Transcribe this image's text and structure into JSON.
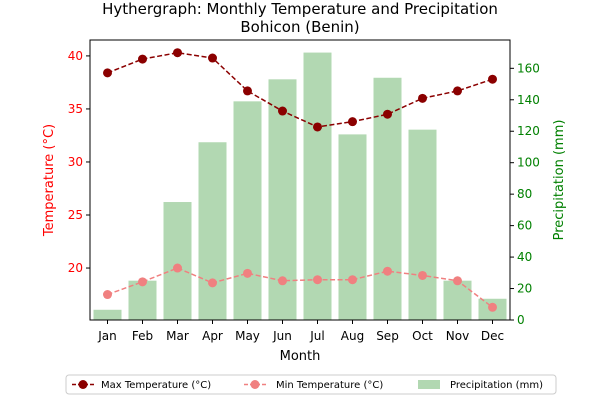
{
  "chart_data": {
    "type": "bar+line",
    "title": "Hythergraph: Monthly Temperature and Precipitation",
    "subtitle": "Bohicon (Benin)",
    "xlabel": "Month",
    "ylabel_left": "Temperature (°C)",
    "ylabel_right": "Precipitation (mm)",
    "categories": [
      "Jan",
      "Feb",
      "Mar",
      "Apr",
      "May",
      "Jun",
      "Jul",
      "Aug",
      "Sep",
      "Oct",
      "Nov",
      "Dec"
    ],
    "y_left_lim": [
      15.1,
      41.5
    ],
    "y_left_ticks": [
      20,
      25,
      30,
      35,
      40
    ],
    "y_right_lim": [
      0,
      178
    ],
    "y_right_ticks": [
      0,
      20,
      40,
      60,
      80,
      100,
      120,
      140,
      160
    ],
    "series": [
      {
        "name": "Max Temperature (°C)",
        "kind": "line",
        "axis": "left",
        "color": "#8b0000",
        "values": [
          38.4,
          39.7,
          40.3,
          39.8,
          36.7,
          34.8,
          33.3,
          33.8,
          34.5,
          36.0,
          36.7,
          37.8
        ]
      },
      {
        "name": "Min Temperature (°C)",
        "kind": "line",
        "axis": "left",
        "color": "#f08080",
        "values": [
          17.5,
          18.7,
          20.0,
          18.6,
          19.5,
          18.8,
          18.9,
          18.9,
          19.7,
          19.3,
          18.8,
          16.3
        ]
      },
      {
        "name": "Precipitation (mm)",
        "kind": "bar",
        "axis": "right",
        "color": "#b2d8b2",
        "values": [
          6.5,
          25,
          75,
          113,
          139,
          153,
          170,
          118,
          154,
          121,
          25,
          13.5
        ]
      }
    ],
    "legend_position": "bottom-center",
    "grid": false
  }
}
